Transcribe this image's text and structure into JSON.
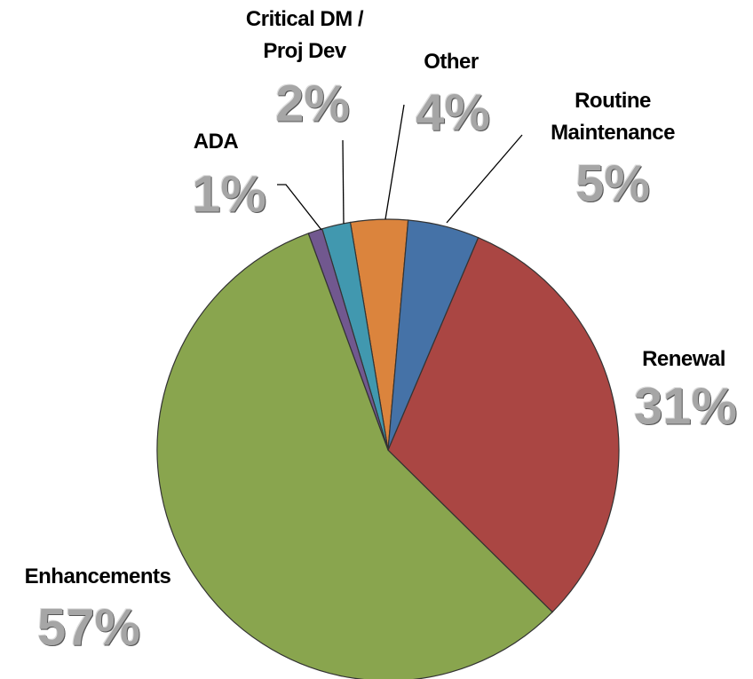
{
  "chart_data": {
    "type": "pie",
    "categories": [
      "Routine Maintenance",
      "Renewal",
      "Enhancements",
      "ADA",
      "Critical DM / Proj Dev",
      "Other"
    ],
    "values": [
      5,
      31,
      57,
      1,
      2,
      4
    ],
    "value_labels": [
      "5%",
      "31%",
      "57%",
      "1%",
      "2%",
      "4%"
    ],
    "colors": [
      "#4572a7",
      "#aa4643",
      "#89a54e",
      "#71588f",
      "#4198af",
      "#db843d"
    ]
  }
}
